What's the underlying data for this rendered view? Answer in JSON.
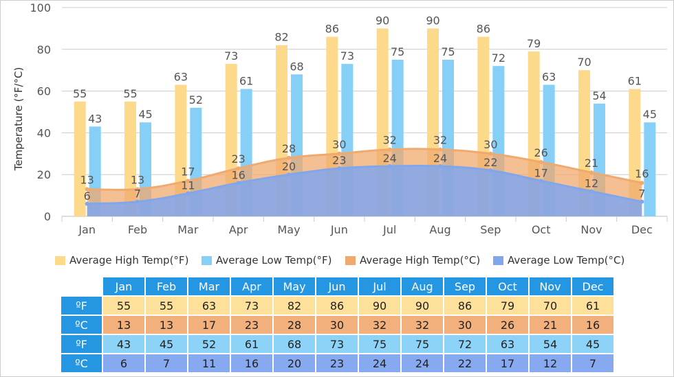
{
  "chart_data": {
    "type": "bar",
    "title": "",
    "ylabel": "Temperature (°F/°C)",
    "xlabel": "",
    "ylim": [
      0,
      100
    ],
    "yticks": [
      "0",
      "20",
      "40",
      "60",
      "80",
      "100"
    ],
    "grid": true,
    "legend_position": "bottom",
    "categories": [
      "Jan",
      "Feb",
      "Mar",
      "Apr",
      "May",
      "Jun",
      "Jul",
      "Aug",
      "Sep",
      "Oct",
      "Nov",
      "Dec"
    ],
    "series": [
      {
        "name": "Average High Temp(°F)",
        "type": "bar",
        "color": "#fcd98b",
        "values": [
          55,
          55,
          63,
          73,
          82,
          86,
          90,
          90,
          86,
          79,
          70,
          61
        ]
      },
      {
        "name": "Average Low Temp(°F)",
        "type": "bar",
        "color": "#86d0f7",
        "values": [
          43,
          45,
          52,
          61,
          68,
          73,
          75,
          75,
          72,
          63,
          54,
          45
        ]
      },
      {
        "name": "Average High Temp(°C)",
        "type": "area",
        "color": "#f0a96e",
        "values": [
          13,
          13,
          17,
          23,
          28,
          30,
          32,
          32,
          30,
          26,
          21,
          16
        ]
      },
      {
        "name": "Average Low Temp(°C)",
        "type": "area",
        "color": "#80a6ec",
        "values": [
          6,
          7,
          11,
          16,
          20,
          23,
          24,
          24,
          22,
          17,
          12,
          7
        ]
      }
    ]
  },
  "table": {
    "row_labels": [
      "ºF",
      "ºC",
      "ºF",
      "ºC"
    ],
    "row_colors": [
      "#fde09a",
      "#f2b07d",
      "#8dd3f8",
      "#86a9ef"
    ],
    "header_color": "#2596e2"
  }
}
